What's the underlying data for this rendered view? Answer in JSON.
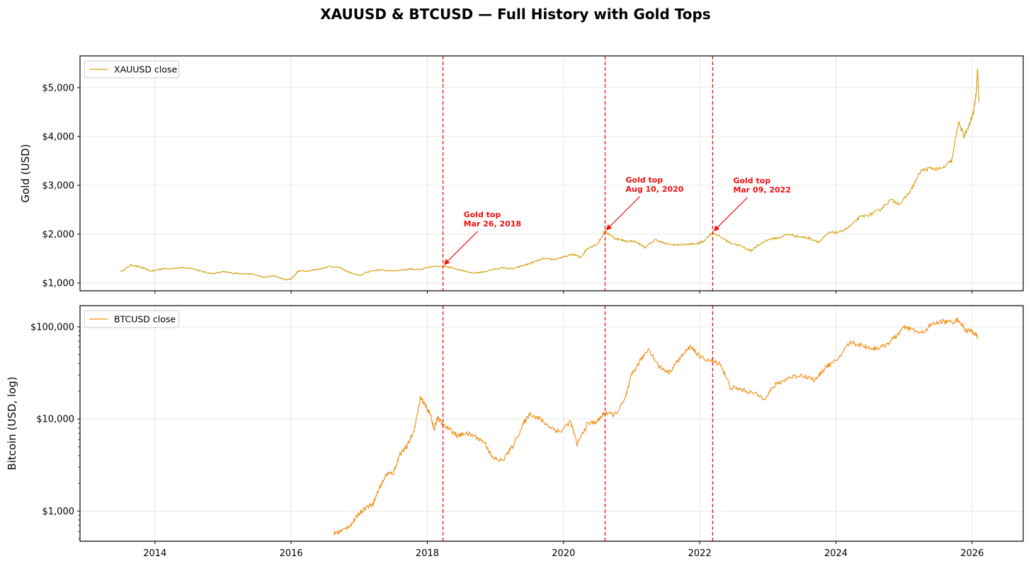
{
  "figure_title": "XAUUSD & BTCUSD — Full History with Gold Tops",
  "colors": {
    "gold_line": "#d4a010",
    "btc_line": "#f08c12",
    "top_marker": "#ee1111",
    "grid": "#e6e6e6",
    "axis": "#000000"
  },
  "chart_data": [
    {
      "type": "line",
      "panel": "top",
      "ylabel": "Gold (USD)",
      "yscale": "linear",
      "xlim": [
        2012.9,
        2026.75
      ],
      "ylim": [
        840,
        5650
      ],
      "yticks": [
        1000,
        2000,
        3000,
        4000,
        5000
      ],
      "ytick_labels": [
        "$1,000",
        "$2,000",
        "$3,000",
        "$4,000",
        "$5,000"
      ],
      "xticks": [
        2014,
        2016,
        2018,
        2020,
        2022,
        2024,
        2026
      ],
      "grid": true,
      "legend_position": "top-left",
      "series": [
        {
          "name": "XAUUSD close",
          "x": [
            2013.5,
            2013.65,
            2013.8,
            2013.95,
            2014.1,
            2014.25,
            2014.4,
            2014.55,
            2014.7,
            2014.85,
            2015.0,
            2015.15,
            2015.3,
            2015.45,
            2015.6,
            2015.75,
            2015.9,
            2016.0,
            2016.1,
            2016.25,
            2016.4,
            2016.55,
            2016.7,
            2016.85,
            2017.0,
            2017.15,
            2017.3,
            2017.45,
            2017.6,
            2017.75,
            2017.9,
            2018.05,
            2018.23,
            2018.35,
            2018.5,
            2018.65,
            2018.8,
            2018.95,
            2019.1,
            2019.25,
            2019.4,
            2019.55,
            2019.7,
            2019.85,
            2020.0,
            2020.15,
            2020.25,
            2020.35,
            2020.5,
            2020.61,
            2020.75,
            2020.9,
            2021.05,
            2021.2,
            2021.35,
            2021.5,
            2021.65,
            2021.8,
            2021.95,
            2022.05,
            2022.19,
            2022.3,
            2022.45,
            2022.6,
            2022.75,
            2022.85,
            2023.0,
            2023.15,
            2023.3,
            2023.45,
            2023.6,
            2023.75,
            2023.9,
            2024.05,
            2024.2,
            2024.35,
            2024.5,
            2024.65,
            2024.8,
            2024.95,
            2025.1,
            2025.25,
            2025.4,
            2025.55,
            2025.7,
            2025.8,
            2025.88,
            2025.95,
            2026.02,
            2026.06,
            2026.08,
            2026.1
          ],
          "values": [
            1230,
            1370,
            1320,
            1240,
            1290,
            1300,
            1310,
            1300,
            1230,
            1190,
            1230,
            1200,
            1190,
            1180,
            1110,
            1150,
            1070,
            1080,
            1240,
            1250,
            1280,
            1340,
            1320,
            1220,
            1150,
            1240,
            1270,
            1250,
            1260,
            1290,
            1270,
            1330,
            1350,
            1320,
            1260,
            1200,
            1220,
            1270,
            1310,
            1290,
            1350,
            1420,
            1500,
            1480,
            1530,
            1590,
            1520,
            1710,
            1800,
            2060,
            1920,
            1860,
            1850,
            1730,
            1890,
            1800,
            1780,
            1790,
            1800,
            1850,
            2040,
            1950,
            1820,
            1760,
            1660,
            1760,
            1890,
            1920,
            2000,
            1950,
            1920,
            1840,
            2030,
            2040,
            2150,
            2350,
            2400,
            2500,
            2700,
            2620,
            2900,
            3300,
            3350,
            3330,
            3500,
            4300,
            4000,
            4200,
            4500,
            4900,
            5400,
            4700
          ]
        }
      ],
      "annotations": [
        {
          "title": "Gold top",
          "date": "Mar 26, 2018",
          "x": 2018.23,
          "y": 1350
        },
        {
          "title": "Gold top",
          "date": "Aug 10, 2020",
          "x": 2020.61,
          "y": 2060
        },
        {
          "title": "Gold top",
          "date": "Mar 09, 2022",
          "x": 2022.19,
          "y": 2040
        }
      ]
    },
    {
      "type": "line",
      "panel": "bottom",
      "ylabel": "Bitcoin (USD, log)",
      "yscale": "log",
      "xlim": [
        2012.9,
        2026.75
      ],
      "ylim": [
        470,
        170000
      ],
      "yticks": [
        1000,
        10000,
        100000
      ],
      "ytick_labels": [
        "$1,000",
        "$10,000",
        "$100,000"
      ],
      "xticks": [
        2014,
        2016,
        2018,
        2020,
        2022,
        2024,
        2026
      ],
      "xtick_labels": [
        "2014",
        "2016",
        "2018",
        "2020",
        "2022",
        "2024",
        "2026"
      ],
      "grid": true,
      "legend_position": "top-left",
      "series": [
        {
          "name": "BTCUSD close",
          "x": [
            2016.62,
            2016.75,
            2016.9,
            2017.0,
            2017.1,
            2017.2,
            2017.3,
            2017.4,
            2017.5,
            2017.6,
            2017.7,
            2017.8,
            2017.9,
            2017.97,
            2018.05,
            2018.1,
            2018.15,
            2018.23,
            2018.35,
            2018.45,
            2018.55,
            2018.7,
            2018.85,
            2018.95,
            2019.1,
            2019.25,
            2019.4,
            2019.5,
            2019.65,
            2019.8,
            2019.95,
            2020.1,
            2020.2,
            2020.35,
            2020.5,
            2020.61,
            2020.75,
            2020.9,
            2021.0,
            2021.1,
            2021.25,
            2021.4,
            2021.55,
            2021.7,
            2021.87,
            2022.0,
            2022.19,
            2022.3,
            2022.45,
            2022.6,
            2022.75,
            2022.95,
            2023.1,
            2023.3,
            2023.5,
            2023.7,
            2023.85,
            2024.0,
            2024.2,
            2024.35,
            2024.55,
            2024.7,
            2024.85,
            2025.0,
            2025.1,
            2025.25,
            2025.4,
            2025.55,
            2025.7,
            2025.8,
            2025.9,
            2026.0,
            2026.08
          ],
          "values": [
            570,
            610,
            740,
            950,
            1100,
            1200,
            1800,
            2500,
            2600,
            4200,
            5000,
            7300,
            17000,
            14000,
            11000,
            7500,
            10500,
            8500,
            7500,
            6500,
            7000,
            6500,
            5500,
            3800,
            3500,
            5000,
            8500,
            11500,
            10000,
            8200,
            7200,
            9500,
            5300,
            8800,
            9500,
            11800,
            11000,
            16000,
            30000,
            40000,
            58000,
            37000,
            32000,
            45000,
            62000,
            47000,
            42000,
            40000,
            22000,
            21000,
            19500,
            16800,
            23000,
            28000,
            30000,
            26500,
            37000,
            42000,
            68000,
            64000,
            58000,
            61000,
            75000,
            98000,
            95000,
            84000,
            105000,
            115000,
            112000,
            120000,
            92000,
            90000,
            78000
          ]
        }
      ]
    }
  ]
}
